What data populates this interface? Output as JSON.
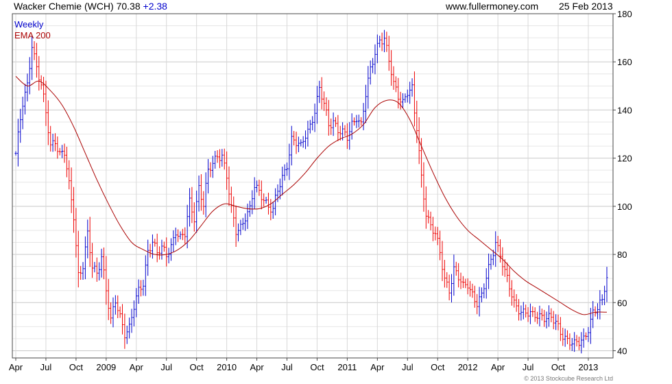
{
  "header": {
    "title": "Wacker Chemie (WCH) 70.38",
    "change": "+2.38",
    "site": "www.fullermoney.com",
    "date": "25 Feb 2013",
    "change_color": "#0000cc"
  },
  "legend": [
    {
      "label": "Weekly",
      "color": "#0000cc"
    },
    {
      "label": "EMA 200",
      "color": "#aa0000"
    }
  ],
  "copyright": "© 2013 Stockcube Research Ltd",
  "chart_data": {
    "type": "line",
    "title": "Wacker Chemie (WCH) 70.38 +2.38",
    "grid": true,
    "y_axis_side": "right",
    "ylim": [
      37,
      180
    ],
    "yticks": [
      40,
      60,
      80,
      100,
      120,
      140,
      160,
      180
    ],
    "xlim": [
      0,
      255
    ],
    "xticks": [
      {
        "x": 0,
        "label": "Apr"
      },
      {
        "x": 13,
        "label": "Jul"
      },
      {
        "x": 26,
        "label": "Oct"
      },
      {
        "x": 39,
        "label": "2009"
      },
      {
        "x": 52,
        "label": "Apr"
      },
      {
        "x": 65,
        "label": "Jul"
      },
      {
        "x": 78,
        "label": "Oct"
      },
      {
        "x": 91,
        "label": "2010"
      },
      {
        "x": 104,
        "label": "Apr"
      },
      {
        "x": 117,
        "label": "Jul"
      },
      {
        "x": 130,
        "label": "Oct"
      },
      {
        "x": 143,
        "label": "2011"
      },
      {
        "x": 156,
        "label": "Apr"
      },
      {
        "x": 169,
        "label": "Jul"
      },
      {
        "x": 182,
        "label": "Oct"
      },
      {
        "x": 195,
        "label": "2012"
      },
      {
        "x": 208,
        "label": "Apr"
      },
      {
        "x": 221,
        "label": "Jul"
      },
      {
        "x": 234,
        "label": "Oct"
      },
      {
        "x": 247,
        "label": "2013"
      }
    ],
    "series": [
      {
        "name": "Weekly",
        "kind": "weekly_close",
        "up_color": "#0000cc",
        "down_color": "#ee0000",
        "anchors": [
          [
            0,
            122
          ],
          [
            3,
            142
          ],
          [
            5,
            150
          ],
          [
            7,
            168
          ],
          [
            9,
            158
          ],
          [
            11,
            150
          ],
          [
            13,
            138
          ],
          [
            15,
            125
          ],
          [
            17,
            128
          ],
          [
            19,
            122
          ],
          [
            21,
            122
          ],
          [
            23,
            108
          ],
          [
            25,
            96
          ],
          [
            27,
            72
          ],
          [
            29,
            76
          ],
          [
            31,
            88
          ],
          [
            33,
            74
          ],
          [
            35,
            72
          ],
          [
            37,
            80
          ],
          [
            39,
            66
          ],
          [
            41,
            52
          ],
          [
            43,
            60
          ],
          [
            45,
            54
          ],
          [
            47,
            48
          ],
          [
            49,
            50
          ],
          [
            51,
            58
          ],
          [
            53,
            64
          ],
          [
            55,
            68
          ],
          [
            57,
            82
          ],
          [
            59,
            86
          ],
          [
            61,
            80
          ],
          [
            63,
            82
          ],
          [
            65,
            80
          ],
          [
            67,
            84
          ],
          [
            69,
            90
          ],
          [
            71,
            86
          ],
          [
            73,
            88
          ],
          [
            75,
            102
          ],
          [
            77,
            96
          ],
          [
            79,
            108
          ],
          [
            81,
            100
          ],
          [
            83,
            114
          ],
          [
            85,
            118
          ],
          [
            87,
            122
          ],
          [
            89,
            121
          ],
          [
            91,
            112
          ],
          [
            93,
            98
          ],
          [
            95,
            90
          ],
          [
            97,
            92
          ],
          [
            99,
            96
          ],
          [
            101,
            98
          ],
          [
            103,
            108
          ],
          [
            105,
            106
          ],
          [
            107,
            104
          ],
          [
            109,
            100
          ],
          [
            111,
            98
          ],
          [
            113,
            106
          ],
          [
            115,
            112
          ],
          [
            117,
            118
          ],
          [
            119,
            128
          ],
          [
            121,
            126
          ],
          [
            123,
            124
          ],
          [
            125,
            130
          ],
          [
            127,
            134
          ],
          [
            129,
            140
          ],
          [
            131,
            148
          ],
          [
            133,
            142
          ],
          [
            135,
            134
          ],
          [
            137,
            136
          ],
          [
            139,
            132
          ],
          [
            141,
            130
          ],
          [
            143,
            128
          ],
          [
            145,
            134
          ],
          [
            147,
            138
          ],
          [
            149,
            134
          ],
          [
            151,
            146
          ],
          [
            153,
            156
          ],
          [
            155,
            164
          ],
          [
            157,
            170
          ],
          [
            159,
            170
          ],
          [
            161,
            160
          ],
          [
            163,
            150
          ],
          [
            165,
            146
          ],
          [
            167,
            144
          ],
          [
            169,
            148
          ],
          [
            171,
            148
          ],
          [
            172,
            138
          ],
          [
            173,
            132
          ],
          [
            175,
            112
          ],
          [
            177,
            98
          ],
          [
            179,
            92
          ],
          [
            181,
            88
          ],
          [
            183,
            80
          ],
          [
            185,
            70
          ],
          [
            187,
            66
          ],
          [
            189,
            74
          ],
          [
            191,
            70
          ],
          [
            193,
            66
          ],
          [
            195,
            68
          ],
          [
            197,
            64
          ],
          [
            199,
            60
          ],
          [
            201,
            62
          ],
          [
            203,
            70
          ],
          [
            205,
            78
          ],
          [
            207,
            86
          ],
          [
            209,
            80
          ],
          [
            211,
            72
          ],
          [
            213,
            66
          ],
          [
            215,
            60
          ],
          [
            217,
            58
          ],
          [
            219,
            56
          ],
          [
            221,
            55
          ],
          [
            223,
            54
          ],
          [
            225,
            55
          ],
          [
            227,
            55
          ],
          [
            229,
            54
          ],
          [
            231,
            53
          ],
          [
            233,
            51
          ],
          [
            235,
            48
          ],
          [
            237,
            46
          ],
          [
            239,
            44
          ],
          [
            241,
            42
          ],
          [
            243,
            43
          ],
          [
            245,
            45
          ],
          [
            247,
            50
          ],
          [
            249,
            56
          ],
          [
            251,
            57
          ],
          [
            253,
            60
          ],
          [
            254,
            66
          ],
          [
            255,
            70.38
          ]
        ]
      },
      {
        "name": "EMA 200",
        "color": "#aa0000",
        "x": [
          0,
          5,
          10,
          15,
          20,
          25,
          30,
          35,
          40,
          45,
          50,
          55,
          60,
          65,
          70,
          75,
          80,
          85,
          90,
          95,
          100,
          105,
          110,
          115,
          120,
          125,
          130,
          135,
          140,
          145,
          150,
          155,
          160,
          165,
          170,
          175,
          180,
          185,
          190,
          195,
          200,
          205,
          210,
          215,
          220,
          225,
          230,
          235,
          240,
          245,
          250,
          255
        ],
        "values": [
          154,
          150,
          152,
          148,
          142,
          133,
          122,
          111,
          101,
          92,
          85,
          82,
          80,
          80,
          82,
          86,
          92,
          98,
          101,
          100,
          99,
          99,
          101,
          105,
          109,
          114,
          120,
          125,
          128,
          130,
          134,
          141,
          144,
          143,
          136,
          125,
          114,
          104,
          96,
          90,
          86,
          82,
          78,
          73,
          69,
          66,
          63,
          60,
          57,
          55,
          56,
          56
        ]
      }
    ]
  }
}
